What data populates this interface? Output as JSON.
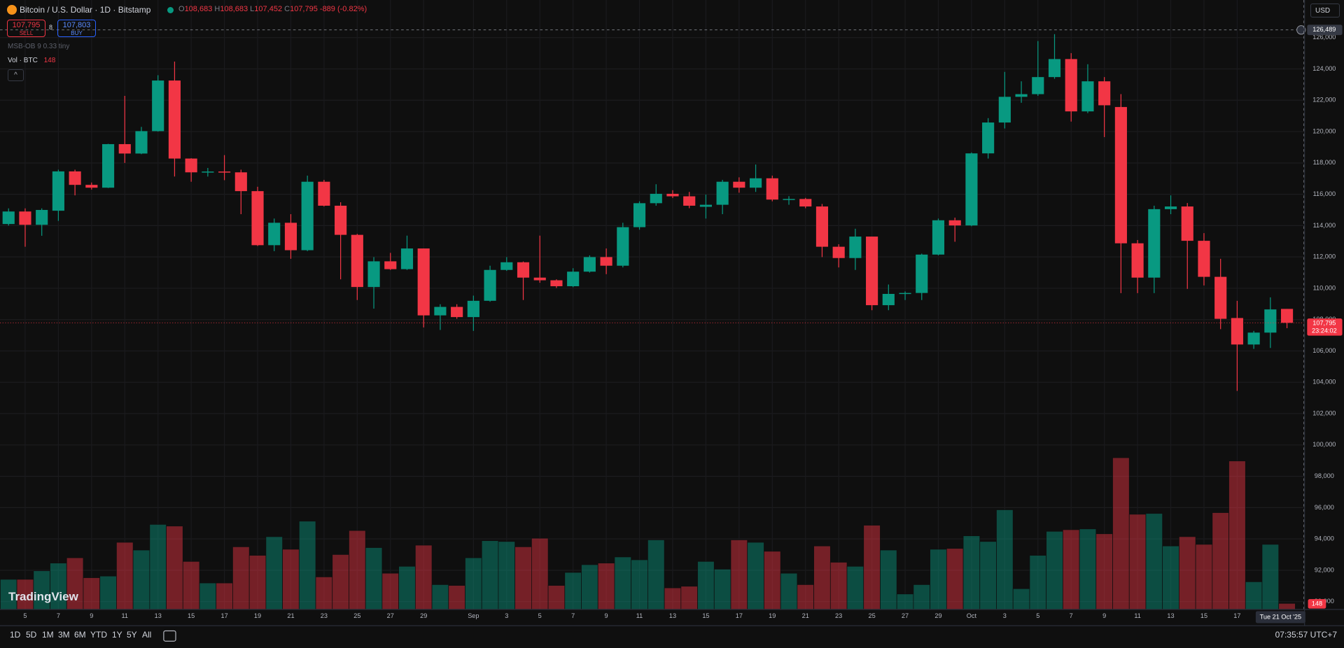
{
  "header": {
    "symbol": "Bitcoin / U.S. Dollar · 1D · Bitstamp",
    "ohlc": [
      {
        "key": "O",
        "value": "108,683"
      },
      {
        "key": "H",
        "value": "108,683"
      },
      {
        "key": "L",
        "value": "107,452"
      },
      {
        "key": "C",
        "value": "107,795"
      }
    ],
    "change": "-889 (-0.82%)"
  },
  "trade": {
    "sell_price": "107,795",
    "sell": "SELL",
    "spread": "8",
    "buy_price": "107,803",
    "buy": "BUY"
  },
  "indicators": {
    "msb": "MSB-OB 9 0.33 tiny",
    "vol_label": "Vol · BTC",
    "vol_value": "148"
  },
  "currency": "USD",
  "timeframes": [
    "1D",
    "5D",
    "1M",
    "3M",
    "6M",
    "YTD",
    "1Y",
    "5Y",
    "All"
  ],
  "clock": "07:35:57 UTC+7",
  "logo": "TradingView",
  "chart_data": {
    "type": "candlestick",
    "categories": [
      null,
      "5",
      null,
      "7",
      null,
      "9",
      null,
      "11",
      null,
      "13",
      null,
      "15",
      null,
      "17",
      null,
      "19",
      null,
      "21",
      null,
      "23",
      null,
      "25",
      null,
      "27",
      null,
      "29",
      null,
      null,
      "Sep",
      null,
      "3",
      null,
      "5",
      null,
      "7",
      null,
      "9",
      null,
      "11",
      null,
      "13",
      null,
      "15",
      null,
      "17",
      null,
      "19",
      null,
      "21",
      null,
      "23",
      null,
      "25",
      null,
      "27",
      null,
      "29",
      null,
      "Oct",
      null,
      "3",
      null,
      "5",
      null,
      "7",
      null,
      "9",
      null,
      "11",
      null,
      "13",
      null,
      "15",
      null,
      "17",
      null,
      null,
      null
    ],
    "open": [
      114100,
      114900,
      114050,
      114950,
      117460,
      116600,
      116420,
      119200,
      118600,
      120030,
      123260,
      118280,
      117400,
      117450,
      117400,
      116200,
      112750,
      114180,
      112430,
      116800,
      115270,
      113410,
      110080,
      111720,
      111220,
      112540,
      108270,
      108810,
      108160,
      109200,
      111170,
      111660,
      110680,
      110510,
      110130,
      111060,
      111990,
      111440,
      113900,
      115430,
      116030,
      115870,
      115200,
      115330,
      116800,
      116420,
      117020,
      115660,
      115700,
      115220,
      112650,
      111930,
      113300,
      108920,
      109640,
      109700,
      112150,
      114340,
      114010,
      118610,
      120580,
      122220,
      122390,
      123480,
      124630,
      121290,
      123210,
      121570,
      112870,
      110680,
      115050,
      115220,
      113030,
      110730,
      108100,
      106410,
      107170,
      108683
    ],
    "high": [
      115100,
      115100,
      115100,
      117570,
      117570,
      116750,
      119220,
      122280,
      120300,
      123600,
      124470,
      118300,
      117680,
      118500,
      117570,
      116480,
      114450,
      114730,
      117190,
      116920,
      115490,
      113470,
      111990,
      112260,
      113360,
      112540,
      108980,
      108980,
      109530,
      111440,
      111990,
      111710,
      113360,
      110570,
      111280,
      112100,
      112540,
      114180,
      115550,
      116640,
      116260,
      116150,
      115980,
      116920,
      117080,
      117900,
      117190,
      115880,
      115770,
      115380,
      112810,
      113800,
      113300,
      110240,
      109800,
      112210,
      114450,
      114510,
      118670,
      120860,
      123810,
      123210,
      125780,
      126220,
      125010,
      124300,
      123480,
      122390,
      113080,
      115270,
      115930,
      115440,
      113520,
      111880,
      109200,
      107280,
      109420,
      108683
    ],
    "low": [
      114000,
      112650,
      113350,
      114300,
      115930,
      116300,
      116400,
      118000,
      118560,
      120000,
      117130,
      116800,
      117130,
      116900,
      114730,
      112700,
      112370,
      111880,
      112370,
      115220,
      110570,
      109250,
      108700,
      111170,
      111170,
      107500,
      107340,
      108050,
      107280,
      109140,
      111110,
      109250,
      110350,
      110020,
      110070,
      111000,
      110900,
      111330,
      113740,
      115270,
      115760,
      115110,
      114450,
      114730,
      116100,
      116150,
      115550,
      115330,
      115110,
      111990,
      111330,
      111170,
      108600,
      108600,
      109250,
      109250,
      112100,
      112970,
      113960,
      118280,
      120200,
      121840,
      122280,
      123370,
      120640,
      121180,
      119650,
      109690,
      109690,
      109690,
      114730,
      109960,
      110180,
      107390,
      103450,
      106130,
      106190,
      107452
    ],
    "close": [
      114900,
      114050,
      115000,
      117460,
      116600,
      116420,
      119200,
      118600,
      120030,
      123260,
      118280,
      117400,
      117450,
      117400,
      116200,
      112750,
      114180,
      112430,
      116800,
      115270,
      113410,
      110080,
      111720,
      111220,
      112540,
      108270,
      108810,
      108160,
      109200,
      111170,
      111660,
      110680,
      110510,
      110130,
      111060,
      111990,
      111440,
      113900,
      115430,
      116030,
      115870,
      115270,
      115330,
      116800,
      116420,
      117020,
      115660,
      115700,
      115220,
      112650,
      111930,
      113300,
      108920,
      109640,
      109700,
      112150,
      114340,
      114010,
      118610,
      120580,
      122220,
      122390,
      123480,
      124630,
      121290,
      123210,
      121680,
      112870,
      110680,
      115050,
      115220,
      113030,
      110730,
      108050,
      106410,
      107170,
      108650,
      107795
    ],
    "volume": [
      740,
      740,
      950,
      1140,
      1270,
      780,
      820,
      1650,
      1460,
      2090,
      2050,
      1180,
      650,
      650,
      1540,
      1330,
      1790,
      1480,
      2170,
      800,
      1350,
      1940,
      1520,
      890,
      1060,
      1580,
      610,
      590,
      1270,
      1690,
      1670,
      1540,
      1750,
      590,
      910,
      1100,
      1140,
      1290,
      1220,
      1710,
      530,
      570,
      1180,
      990,
      1710,
      1650,
      1430,
      890,
      610,
      1560,
      1160,
      1060,
      2070,
      1460,
      380,
      610,
      1480,
      1500,
      1810,
      1670,
      2450,
      510,
      1330,
      1920,
      1960,
      1980,
      1860,
      3730,
      2340,
      2360,
      1560,
      1790,
      1600,
      2380,
      3650,
      680,
      1600,
      148
    ],
    "up_color": "#089981",
    "down_color": "#f23645",
    "ylim": [
      89500,
      128400
    ],
    "yticks": [
      {
        "value": 90000,
        "label": "90,000"
      },
      {
        "value": 92000,
        "label": "92,000"
      },
      {
        "value": 94000,
        "label": "94,000"
      },
      {
        "value": 96000,
        "label": "96,000"
      },
      {
        "value": 98000,
        "label": "98,000"
      },
      {
        "value": 100000,
        "label": "100,000"
      },
      {
        "value": 102000,
        "label": "102,000"
      },
      {
        "value": 104000,
        "label": "104,000"
      },
      {
        "value": 106000,
        "label": "106,000"
      },
      {
        "value": 108000,
        "label": "108,000"
      },
      {
        "value": 110000,
        "label": "110,000"
      },
      {
        "value": 112000,
        "label": "112,000"
      },
      {
        "value": 114000,
        "label": "114,000"
      },
      {
        "value": 116000,
        "label": "116,000"
      },
      {
        "value": 118000,
        "label": "118,000"
      },
      {
        "value": 120000,
        "label": "120,000"
      },
      {
        "value": 122000,
        "label": "122,000"
      },
      {
        "value": 124000,
        "label": "124,000"
      },
      {
        "value": 126000,
        "label": "126,000"
      }
    ],
    "grid": true,
    "last_price": {
      "value": 107795,
      "label": "107,795"
    },
    "countdown": "23:24:02",
    "crosshair_price": {
      "value": 126489,
      "label": "126,489"
    },
    "crosshair_date": "Tue 21 Oct '25"
  }
}
